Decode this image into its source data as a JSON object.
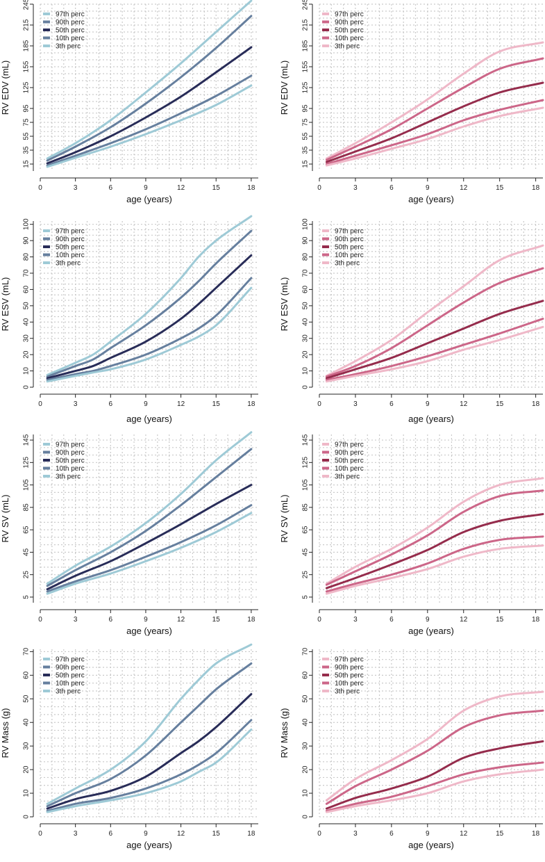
{
  "colors": {
    "male": {
      "p97": "#9ecad6",
      "p90": "#667f9e",
      "p50": "#282c58",
      "p10": "#667f9e",
      "p3": "#9ecad6"
    },
    "female": {
      "p97": "#efb8c8",
      "p90": "#cc6688",
      "p50": "#952c4c",
      "p10": "#cc6688",
      "p3": "#efb8c8"
    }
  },
  "chart_data": [
    {
      "type": "line",
      "panel": "male-edv",
      "xlabel": "age (years)",
      "ylabel": "RV EDV (mL)",
      "xlim": [
        0,
        18.6
      ],
      "ylim": [
        5,
        245
      ],
      "xticks": [
        0,
        3,
        6,
        9,
        12,
        15,
        18
      ],
      "yticks": [
        15,
        35,
        55,
        75,
        95,
        125,
        155,
        185,
        215,
        245
      ],
      "x": [
        0.6,
        3,
        6,
        9,
        12,
        15,
        18
      ],
      "series": [
        {
          "name": "97th perc",
          "key": "p97",
          "values": [
            23,
            45,
            78,
            118,
            160,
            205,
            250
          ]
        },
        {
          "name": "90th perc",
          "key": "p90",
          "values": [
            20,
            40,
            68,
            102,
            140,
            182,
            228
          ]
        },
        {
          "name": "50th perc",
          "key": "p50",
          "values": [
            16,
            32,
            55,
            82,
            112,
            147,
            183
          ]
        },
        {
          "name": "10th perc",
          "key": "p10",
          "values": [
            13,
            27,
            45,
            65,
            88,
            113,
            142
          ]
        },
        {
          "name": "3th perc",
          "key": "p3",
          "values": [
            11,
            24,
            40,
            58,
            78,
            100,
            128
          ]
        }
      ]
    },
    {
      "type": "line",
      "panel": "female-edv",
      "xlabel": "age (years)",
      "ylabel": "RV EDV (mL)",
      "xlim": [
        0,
        18.6
      ],
      "ylim": [
        5,
        245
      ],
      "xticks": [
        0,
        3,
        6,
        9,
        12,
        15,
        18
      ],
      "yticks": [
        15,
        35,
        55,
        75,
        95,
        125,
        155,
        185,
        215,
        245
      ],
      "x": [
        0.6,
        3,
        6,
        9,
        12,
        15,
        18.6
      ],
      "series": [
        {
          "name": "97th perc",
          "key": "p97",
          "values": [
            23,
            45,
            75,
            108,
            145,
            177,
            190
          ]
        },
        {
          "name": "90th perc",
          "key": "p90",
          "values": [
            21,
            40,
            65,
            95,
            125,
            152,
            167
          ]
        },
        {
          "name": "50th perc",
          "key": "p50",
          "values": [
            18,
            33,
            52,
            75,
            98,
            118,
            132
          ]
        },
        {
          "name": "10th perc",
          "key": "p10",
          "values": [
            15,
            27,
            42,
            58,
            78,
            93,
            107
          ]
        },
        {
          "name": "3th perc",
          "key": "p3",
          "values": [
            13,
            23,
            37,
            51,
            69,
            84,
            96
          ]
        }
      ]
    },
    {
      "type": "line",
      "panel": "male-esv",
      "xlabel": "age (years)",
      "ylabel": "RV ESV (mL)",
      "xlim": [
        0,
        18.6
      ],
      "ylim": [
        0,
        102
      ],
      "xticks": [
        0,
        3,
        6,
        9,
        12,
        15,
        18
      ],
      "yticks": [
        0,
        10,
        20,
        30,
        40,
        50,
        60,
        70,
        80,
        90,
        100
      ],
      "x": [
        0.6,
        3,
        4.5,
        6,
        9,
        12,
        13.5,
        15,
        18
      ],
      "series": [
        {
          "name": "97th perc",
          "key": "p97",
          "values": [
            7.5,
            15,
            20,
            28,
            45,
            67,
            80,
            90,
            105
          ]
        },
        {
          "name": "90th perc",
          "key": "p90",
          "values": [
            6.5,
            13,
            17,
            24,
            38,
            55,
            65,
            76,
            96
          ]
        },
        {
          "name": "50th perc",
          "key": "p50",
          "values": [
            5.5,
            10,
            13,
            18,
            28,
            42,
            51,
            61,
            81
          ]
        },
        {
          "name": "10th perc",
          "key": "p10",
          "values": [
            4.5,
            8,
            10,
            13,
            20,
            30,
            36,
            44,
            67
          ]
        },
        {
          "name": "3th perc",
          "key": "p3",
          "values": [
            3.5,
            7,
            9,
            11,
            17,
            26,
            31,
            38,
            61
          ]
        }
      ]
    },
    {
      "type": "line",
      "panel": "female-esv",
      "xlabel": "age (years)",
      "ylabel": "RV ESV (mL)",
      "xlim": [
        0,
        18.6
      ],
      "ylim": [
        0,
        102
      ],
      "xticks": [
        0,
        3,
        6,
        9,
        12,
        15,
        18
      ],
      "yticks": [
        0,
        10,
        20,
        30,
        40,
        50,
        60,
        70,
        80,
        90,
        100
      ],
      "x": [
        0.6,
        3,
        6,
        9,
        12,
        15,
        18.6
      ],
      "series": [
        {
          "name": "97th perc",
          "key": "p97",
          "values": [
            7,
            16,
            29,
            46,
            62,
            78,
            87
          ]
        },
        {
          "name": "90th perc",
          "key": "p90",
          "values": [
            6.5,
            13,
            24,
            38,
            52,
            64,
            73
          ]
        },
        {
          "name": "50th perc",
          "key": "p50",
          "values": [
            5.5,
            11,
            18,
            27,
            36,
            45,
            53
          ]
        },
        {
          "name": "10th perc",
          "key": "p10",
          "values": [
            4.5,
            8,
            13,
            19,
            26,
            33,
            42
          ]
        },
        {
          "name": "3th perc",
          "key": "p3",
          "values": [
            3.5,
            7,
            11,
            16,
            23,
            29,
            37
          ]
        }
      ]
    },
    {
      "type": "line",
      "panel": "male-sv",
      "xlabel": "age (years)",
      "ylabel": "RV SV (mL)",
      "xlim": [
        0,
        18.6
      ],
      "ylim": [
        0,
        150
      ],
      "xticks": [
        0,
        3,
        6,
        9,
        12,
        15,
        18
      ],
      "yticks": [
        5,
        25,
        45,
        65,
        85,
        105,
        125,
        145
      ],
      "x": [
        0.6,
        3,
        6,
        9,
        12,
        15,
        18
      ],
      "series": [
        {
          "name": "97th perc",
          "key": "p97",
          "values": [
            17,
            33,
            50,
            71,
            97,
            127,
            152
          ]
        },
        {
          "name": "90th perc",
          "key": "p90",
          "values": [
            15,
            29,
            45,
            64,
            87,
            112,
            137
          ]
        },
        {
          "name": "50th perc",
          "key": "p50",
          "values": [
            12,
            24,
            37,
            53,
            70,
            88,
            105
          ]
        },
        {
          "name": "10th perc",
          "key": "p10",
          "values": [
            10,
            19,
            29,
            41,
            54,
            69,
            87
          ]
        },
        {
          "name": "3th perc",
          "key": "p3",
          "values": [
            8,
            17,
            26,
            37,
            49,
            63,
            80
          ]
        }
      ]
    },
    {
      "type": "line",
      "panel": "female-sv",
      "xlabel": "age (years)",
      "ylabel": "RV SV (mL)",
      "xlim": [
        0,
        18.6
      ],
      "ylim": [
        0,
        150
      ],
      "xticks": [
        0,
        3,
        6,
        9,
        12,
        15,
        18
      ],
      "yticks": [
        5,
        25,
        45,
        65,
        85,
        105,
        125,
        145
      ],
      "x": [
        0.6,
        3,
        6,
        9,
        12,
        15,
        18.6
      ],
      "series": [
        {
          "name": "97th perc",
          "key": "p97",
          "values": [
            17,
            32,
            48,
            67,
            90,
            105,
            111
          ]
        },
        {
          "name": "90th perc",
          "key": "p90",
          "values": [
            16,
            28,
            43,
            60,
            81,
            95,
            100
          ]
        },
        {
          "name": "50th perc",
          "key": "p50",
          "values": [
            13,
            22,
            34,
            47,
            63,
            73,
            79
          ]
        },
        {
          "name": "10th perc",
          "key": "p10",
          "values": [
            10,
            17,
            25,
            35,
            48,
            56,
            59
          ]
        },
        {
          "name": "3th perc",
          "key": "p3",
          "values": [
            8,
            15,
            22,
            30,
            41,
            48,
            51
          ]
        }
      ]
    },
    {
      "type": "line",
      "panel": "male-mass",
      "xlabel": "age (years)",
      "ylabel": "RV Mass (g)",
      "xlim": [
        0,
        18.6
      ],
      "ylim": [
        0,
        71
      ],
      "xticks": [
        0,
        3,
        6,
        9,
        12,
        15,
        18
      ],
      "yticks": [
        0,
        10,
        20,
        30,
        40,
        50,
        60,
        70
      ],
      "x": [
        0.6,
        3,
        6,
        9,
        12,
        13.5,
        15,
        18
      ],
      "series": [
        {
          "name": "97th perc",
          "key": "p97",
          "values": [
            5.5,
            12,
            20,
            32,
            50,
            58,
            65,
            73
          ]
        },
        {
          "name": "90th perc",
          "key": "p90",
          "values": [
            4.5,
            10,
            16,
            26,
            40,
            47,
            54,
            65
          ]
        },
        {
          "name": "50th perc",
          "key": "p50",
          "values": [
            3.5,
            7.5,
            11,
            17,
            27,
            32,
            38,
            52
          ]
        },
        {
          "name": "10th perc",
          "key": "p10",
          "values": [
            2.5,
            5.5,
            8,
            12,
            18,
            22,
            27,
            41
          ]
        },
        {
          "name": "3th perc",
          "key": "p3",
          "values": [
            2,
            4.5,
            7,
            10,
            15,
            19,
            23,
            37
          ]
        }
      ]
    },
    {
      "type": "line",
      "panel": "female-mass",
      "xlabel": "age (years)",
      "ylabel": "RV Mass (g)",
      "xlim": [
        0,
        18.6
      ],
      "ylim": [
        0,
        71
      ],
      "xticks": [
        0,
        3,
        6,
        9,
        12,
        15,
        18
      ],
      "yticks": [
        0,
        10,
        20,
        30,
        40,
        50,
        60,
        70
      ],
      "x": [
        0.6,
        3,
        6,
        9,
        12,
        15,
        18.6
      ],
      "series": [
        {
          "name": "97th perc",
          "key": "p97",
          "values": [
            7,
            16,
            24,
            33,
            45,
            51,
            53
          ]
        },
        {
          "name": "90th perc",
          "key": "p90",
          "values": [
            5.5,
            13,
            20,
            28,
            38,
            43,
            45
          ]
        },
        {
          "name": "50th perc",
          "key": "p50",
          "values": [
            3.5,
            8,
            12,
            17,
            25,
            29,
            32
          ]
        },
        {
          "name": "10th perc",
          "key": "p10",
          "values": [
            2.5,
            5.5,
            8.5,
            13,
            18,
            21,
            23
          ]
        },
        {
          "name": "3th perc",
          "key": "p3",
          "values": [
            2,
            4.5,
            7,
            10,
            15,
            18,
            20
          ]
        }
      ]
    }
  ]
}
